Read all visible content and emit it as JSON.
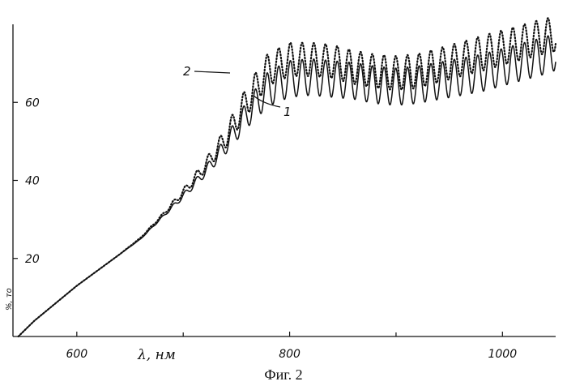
{
  "chart_data": {
    "type": "line",
    "xlabel": "λ, нм",
    "ylabel": "%, то",
    "caption": "Фиг. 2",
    "xlim": [
      540,
      1050
    ],
    "ylim": [
      0,
      80
    ],
    "x_ticks": [
      600,
      800,
      1000
    ],
    "x_minor_ticks": [
      700,
      900
    ],
    "y_ticks": [
      20,
      40,
      60
    ],
    "series": [
      {
        "name": "1",
        "style": "solid",
        "color": "#111111",
        "x": [
          545,
          560,
          580,
          600,
          620,
          640,
          660,
          680,
          700,
          720,
          740,
          760,
          780,
          800,
          820,
          840,
          860,
          880,
          900,
          920,
          940,
          960,
          980,
          1000,
          1020,
          1040,
          1050
        ],
        "y": [
          0,
          4,
          8.5,
          13,
          17,
          21,
          25,
          30.5,
          36,
          42,
          49,
          57,
          63.5,
          66,
          66.5,
          66,
          65.5,
          64.5,
          64,
          64.5,
          65.5,
          66.5,
          67.5,
          69,
          70.5,
          72,
          73
        ],
        "oscillation_amplitude": [
          0,
          0,
          0,
          0,
          0,
          0,
          0.05,
          0.25,
          0.7,
          1.2,
          2.2,
          3.5,
          4.5,
          4.7,
          4.7,
          4.7,
          4.7,
          4.8,
          4.8,
          4.8,
          4.8,
          4.8,
          4.8,
          4.8,
          4.8,
          4.8,
          4.8
        ],
        "oscillation_period_nm": 11
      },
      {
        "name": "2",
        "style": "dotted",
        "color": "#111111",
        "x": [
          545,
          560,
          580,
          600,
          620,
          640,
          660,
          680,
          700,
          720,
          740,
          760,
          780,
          800,
          820,
          840,
          860,
          880,
          900,
          920,
          940,
          960,
          980,
          1000,
          1020,
          1040,
          1050
        ],
        "y": [
          0,
          4,
          8.5,
          13,
          17,
          21,
          25.3,
          31,
          37,
          43.5,
          51,
          60.5,
          68.5,
          71,
          71,
          70.5,
          69,
          68,
          67.5,
          68,
          69.5,
          71,
          72.5,
          74,
          75.5,
          77,
          77.5
        ],
        "oscillation_amplitude": [
          0,
          0,
          0,
          0,
          0,
          0,
          0.05,
          0.3,
          0.9,
          1.5,
          2.6,
          3.8,
          4.2,
          4.3,
          4.3,
          4.3,
          4.3,
          4.3,
          4.4,
          4.4,
          4.4,
          4.4,
          4.5,
          4.5,
          4.5,
          4.5,
          4.5
        ],
        "oscillation_period_nm": 11
      }
    ]
  }
}
